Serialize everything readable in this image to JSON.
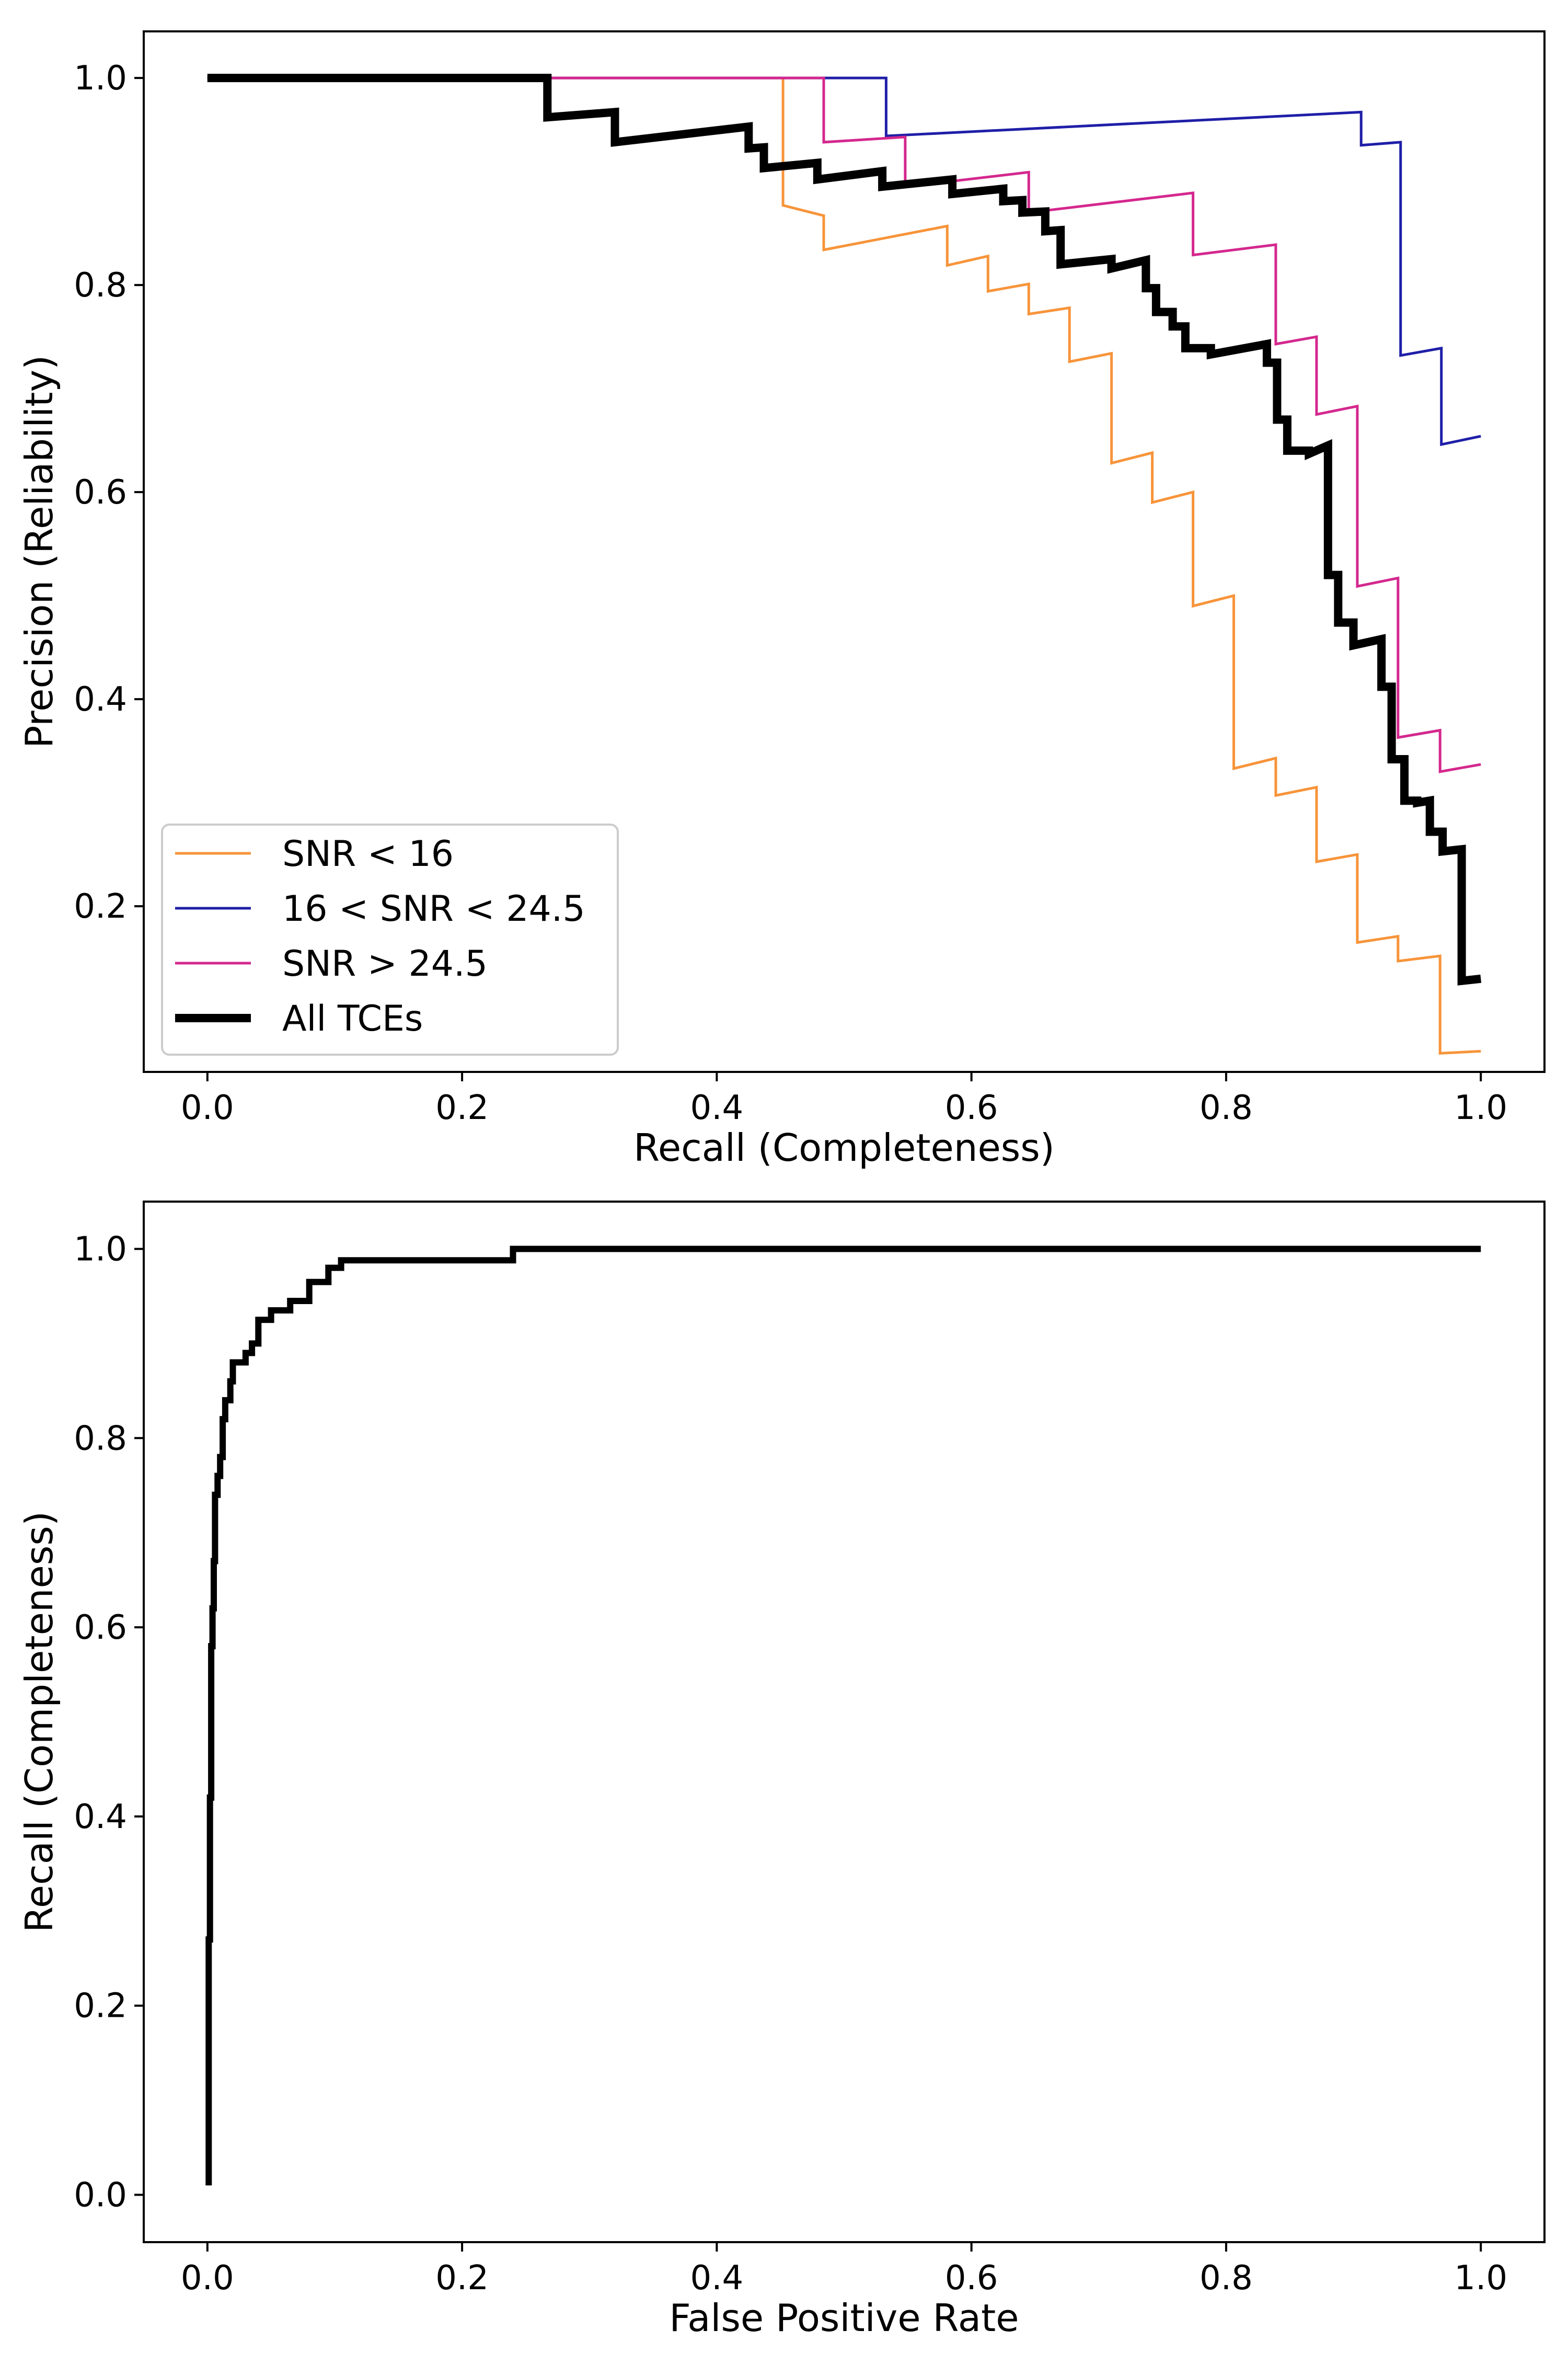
{
  "chart_data": [
    {
      "type": "line",
      "xlabel": "Recall (Completeness)",
      "ylabel": "Precision (Reliability)",
      "xlim": [
        -0.05,
        1.05
      ],
      "ylim": [
        0.04,
        1.045
      ],
      "xticks": [
        0.0,
        0.2,
        0.4,
        0.6,
        0.8,
        1.0
      ],
      "xtick_labels": [
        "0.0",
        "0.2",
        "0.4",
        "0.6",
        "0.8",
        "1.0"
      ],
      "yticks": [
        0.2,
        0.4,
        0.6,
        0.8,
        1.0
      ],
      "ytick_labels": [
        "0.2",
        "0.4",
        "0.6",
        "0.8",
        "1.0"
      ],
      "grid": false,
      "legend_position": "lower-left",
      "series": [
        {
          "name": "SNR < 16",
          "color": "#F7943A",
          "width": 5,
          "points": [
            [
              0,
              1.0
            ],
            [
              0.452,
              1.0
            ],
            [
              0.452,
              0.877
            ],
            [
              0.484,
              0.867
            ],
            [
              0.484,
              0.834
            ],
            [
              0.581,
              0.857
            ],
            [
              0.581,
              0.819
            ],
            [
              0.613,
              0.828
            ],
            [
              0.613,
              0.794
            ],
            [
              0.645,
              0.801
            ],
            [
              0.645,
              0.772
            ],
            [
              0.677,
              0.778
            ],
            [
              0.677,
              0.726
            ],
            [
              0.71,
              0.734
            ],
            [
              0.71,
              0.628
            ],
            [
              0.742,
              0.638
            ],
            [
              0.742,
              0.59
            ],
            [
              0.774,
              0.6
            ],
            [
              0.774,
              0.49
            ],
            [
              0.806,
              0.5
            ],
            [
              0.806,
              0.333
            ],
            [
              0.839,
              0.343
            ],
            [
              0.839,
              0.307
            ],
            [
              0.871,
              0.315
            ],
            [
              0.871,
              0.243
            ],
            [
              0.903,
              0.25
            ],
            [
              0.903,
              0.165
            ],
            [
              0.935,
              0.171
            ],
            [
              0.935,
              0.147
            ],
            [
              0.968,
              0.152
            ],
            [
              0.968,
              0.058
            ],
            [
              1.0,
              0.06
            ]
          ]
        },
        {
          "name": "16 < SNR < 24.5",
          "color": "#1F1FA8",
          "width": 5,
          "points": [
            [
              0,
              1.0
            ],
            [
              0.533,
              1.0
            ],
            [
              0.533,
              0.944
            ],
            [
              0.906,
              0.967
            ],
            [
              0.906,
              0.935
            ],
            [
              0.937,
              0.938
            ],
            [
              0.937,
              0.732
            ],
            [
              0.969,
              0.739
            ],
            [
              0.969,
              0.646
            ],
            [
              1.0,
              0.654
            ]
          ]
        },
        {
          "name": "SNR > 24.5",
          "color": "#D4288E",
          "width": 5,
          "points": [
            [
              0,
              1.0
            ],
            [
              0.484,
              1.0
            ],
            [
              0.484,
              0.938
            ],
            [
              0.548,
              0.943
            ],
            [
              0.548,
              0.895
            ],
            [
              0.645,
              0.909
            ],
            [
              0.645,
              0.87
            ],
            [
              0.774,
              0.889
            ],
            [
              0.774,
              0.829
            ],
            [
              0.839,
              0.839
            ],
            [
              0.839,
              0.743
            ],
            [
              0.871,
              0.75
            ],
            [
              0.871,
              0.675
            ],
            [
              0.903,
              0.683
            ],
            [
              0.903,
              0.509
            ],
            [
              0.935,
              0.517
            ],
            [
              0.935,
              0.363
            ],
            [
              0.968,
              0.37
            ],
            [
              0.968,
              0.33
            ],
            [
              1.0,
              0.337
            ]
          ]
        },
        {
          "name": "All TCEs",
          "color": "#000000",
          "width": 16,
          "points": [
            [
              0,
              1.0
            ],
            [
              0.267,
              1.0
            ],
            [
              0.267,
              0.962
            ],
            [
              0.32,
              0.967
            ],
            [
              0.32,
              0.938
            ],
            [
              0.425,
              0.953
            ],
            [
              0.425,
              0.932
            ],
            [
              0.437,
              0.933
            ],
            [
              0.437,
              0.913
            ],
            [
              0.479,
              0.918
            ],
            [
              0.479,
              0.902
            ],
            [
              0.53,
              0.91
            ],
            [
              0.53,
              0.895
            ],
            [
              0.585,
              0.902
            ],
            [
              0.585,
              0.888
            ],
            [
              0.625,
              0.893
            ],
            [
              0.625,
              0.881
            ],
            [
              0.64,
              0.882
            ],
            [
              0.64,
              0.87
            ],
            [
              0.658,
              0.871
            ],
            [
              0.658,
              0.852
            ],
            [
              0.67,
              0.853
            ],
            [
              0.67,
              0.82
            ],
            [
              0.71,
              0.825
            ],
            [
              0.71,
              0.816
            ],
            [
              0.737,
              0.824
            ],
            [
              0.737,
              0.797
            ],
            [
              0.745,
              0.797
            ],
            [
              0.745,
              0.774
            ],
            [
              0.758,
              0.774
            ],
            [
              0.758,
              0.76
            ],
            [
              0.768,
              0.76
            ],
            [
              0.768,
              0.739
            ],
            [
              0.788,
              0.739
            ],
            [
              0.788,
              0.733
            ],
            [
              0.832,
              0.743
            ],
            [
              0.832,
              0.725
            ],
            [
              0.84,
              0.725
            ],
            [
              0.84,
              0.67
            ],
            [
              0.848,
              0.67
            ],
            [
              0.848,
              0.64
            ],
            [
              0.865,
              0.64
            ],
            [
              0.865,
              0.637
            ],
            [
              0.88,
              0.645
            ],
            [
              0.88,
              0.52
            ],
            [
              0.888,
              0.52
            ],
            [
              0.888,
              0.474
            ],
            [
              0.9,
              0.474
            ],
            [
              0.9,
              0.452
            ],
            [
              0.922,
              0.458
            ],
            [
              0.922,
              0.412
            ],
            [
              0.93,
              0.412
            ],
            [
              0.93,
              0.342
            ],
            [
              0.94,
              0.342
            ],
            [
              0.94,
              0.302
            ],
            [
              0.95,
              0.302
            ],
            [
              0.95,
              0.3
            ],
            [
              0.96,
              0.302
            ],
            [
              0.96,
              0.272
            ],
            [
              0.97,
              0.272
            ],
            [
              0.97,
              0.253
            ],
            [
              0.985,
              0.255
            ],
            [
              0.985,
              0.128
            ],
            [
              1.0,
              0.13
            ]
          ]
        }
      ]
    },
    {
      "type": "line",
      "xlabel": "False Positive Rate",
      "ylabel": "Recall (Completeness)",
      "xlim": [
        -0.05,
        1.05
      ],
      "ylim": [
        -0.05,
        1.05
      ],
      "xticks": [
        0.0,
        0.2,
        0.4,
        0.6,
        0.8,
        1.0
      ],
      "xtick_labels": [
        "0.0",
        "0.2",
        "0.4",
        "0.6",
        "0.8",
        "1.0"
      ],
      "yticks": [
        0.0,
        0.2,
        0.4,
        0.6,
        0.8,
        1.0
      ],
      "ytick_labels": [
        "0.0",
        "0.2",
        "0.4",
        "0.6",
        "0.8",
        "1.0"
      ],
      "grid": false,
      "series": [
        {
          "color": "#000000",
          "width": 12,
          "points": [
            [
              0.001,
              0.01
            ],
            [
              0.001,
              0.27
            ],
            [
              0.002,
              0.27
            ],
            [
              0.002,
              0.42
            ],
            [
              0.003,
              0.42
            ],
            [
              0.003,
              0.58
            ],
            [
              0.004,
              0.58
            ],
            [
              0.004,
              0.62
            ],
            [
              0.005,
              0.62
            ],
            [
              0.005,
              0.67
            ],
            [
              0.006,
              0.67
            ],
            [
              0.006,
              0.74
            ],
            [
              0.008,
              0.74
            ],
            [
              0.008,
              0.76
            ],
            [
              0.01,
              0.76
            ],
            [
              0.01,
              0.78
            ],
            [
              0.012,
              0.78
            ],
            [
              0.012,
              0.82
            ],
            [
              0.014,
              0.82
            ],
            [
              0.014,
              0.84
            ],
            [
              0.018,
              0.84
            ],
            [
              0.018,
              0.86
            ],
            [
              0.02,
              0.86
            ],
            [
              0.02,
              0.88
            ],
            [
              0.03,
              0.88
            ],
            [
              0.03,
              0.89
            ],
            [
              0.035,
              0.89
            ],
            [
              0.035,
              0.9
            ],
            [
              0.04,
              0.9
            ],
            [
              0.04,
              0.925
            ],
            [
              0.05,
              0.925
            ],
            [
              0.05,
              0.935
            ],
            [
              0.065,
              0.935
            ],
            [
              0.065,
              0.945
            ],
            [
              0.08,
              0.945
            ],
            [
              0.08,
              0.965
            ],
            [
              0.095,
              0.965
            ],
            [
              0.095,
              0.98
            ],
            [
              0.105,
              0.98
            ],
            [
              0.105,
              0.988
            ],
            [
              0.24,
              0.988
            ],
            [
              0.24,
              1.0
            ],
            [
              1.0,
              1.0
            ]
          ]
        }
      ]
    }
  ]
}
